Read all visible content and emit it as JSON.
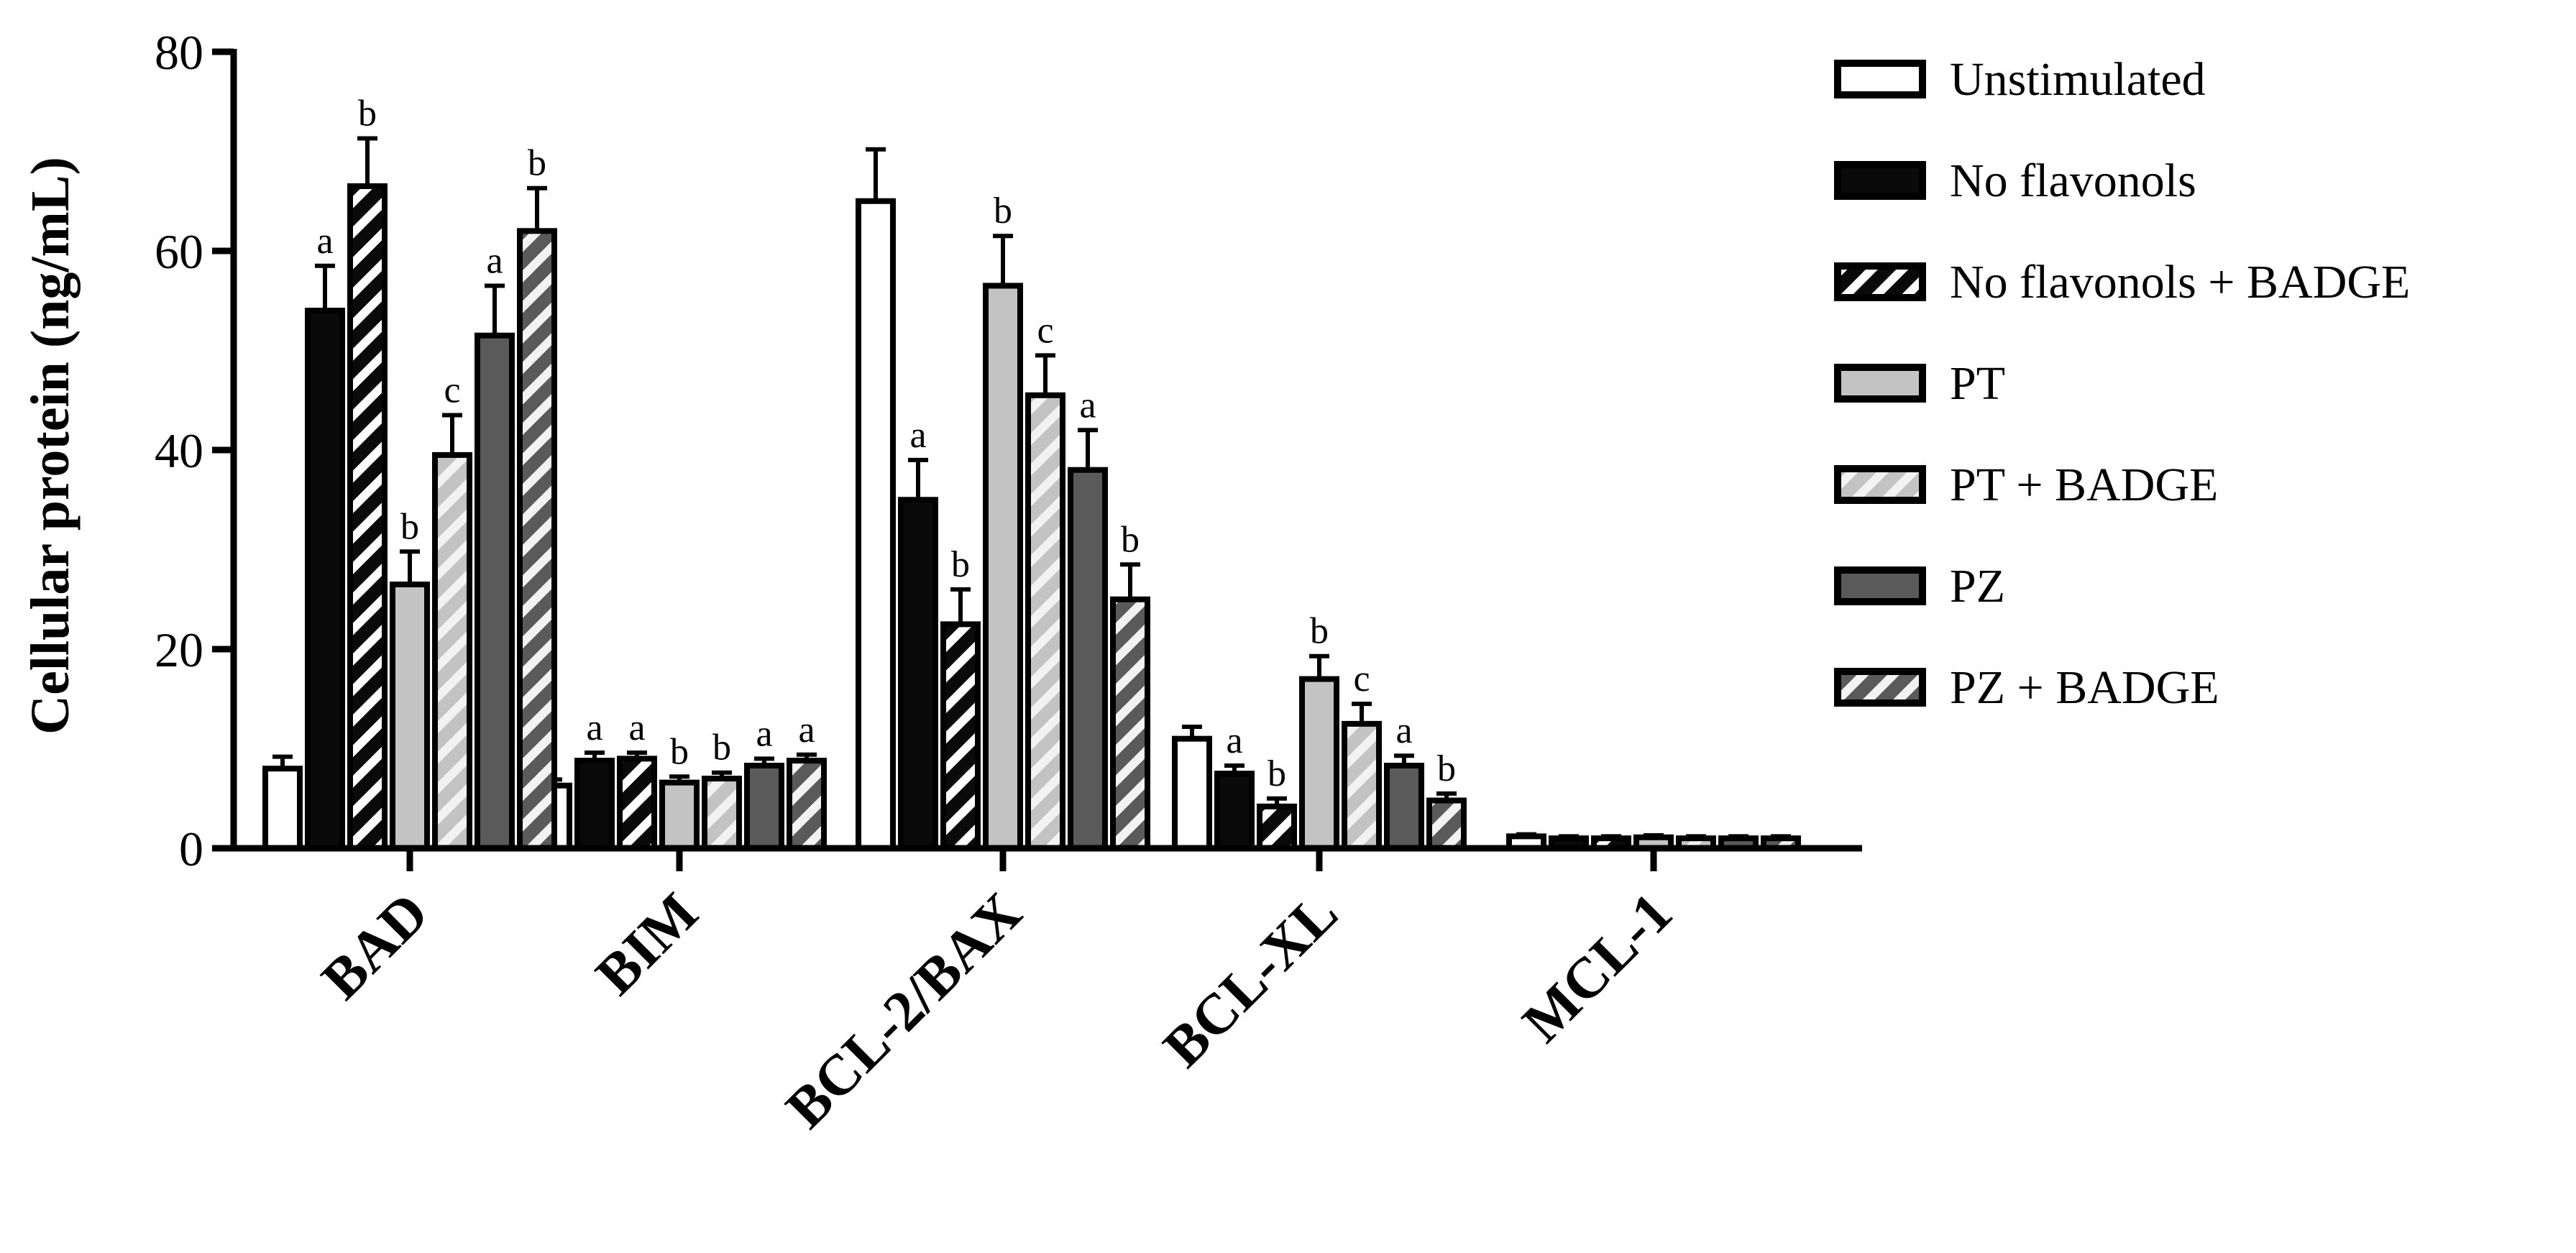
{
  "chart_data": {
    "type": "bar",
    "ylabel": "Cellular protein (ng/mL)",
    "xlabel": "",
    "ylim": [
      0,
      80
    ],
    "yticks": [
      0,
      20,
      40,
      60,
      80
    ],
    "grid": false,
    "legend_position": "right",
    "categories": [
      "BAD",
      "BIM",
      "BCL-2/BAX",
      "BCL-XL",
      "MCL-1"
    ],
    "series": [
      {
        "name": "Unstimulated",
        "fill": "white",
        "hatch": false,
        "values": [
          8,
          6.3,
          65,
          11,
          1.2
        ],
        "errors": [
          1.2,
          0.6,
          5.2,
          1.2,
          0.2
        ],
        "labels": [
          "",
          "",
          "",
          "",
          ""
        ]
      },
      {
        "name": "No flavonols",
        "fill": "black",
        "hatch": false,
        "values": [
          54,
          8.8,
          35,
          7.5,
          1.0
        ],
        "errors": [
          4.5,
          0.8,
          4.0,
          0.8,
          0.2
        ],
        "labels": [
          "a",
          "a",
          "a",
          "a",
          ""
        ]
      },
      {
        "name": "No flavonols + BADGE",
        "fill": "black",
        "hatch": true,
        "values": [
          66.5,
          9.0,
          22.5,
          4.2,
          1.0
        ],
        "errors": [
          4.8,
          0.6,
          3.5,
          0.8,
          0.2
        ],
        "labels": [
          "b",
          "a",
          "b",
          "b",
          ""
        ]
      },
      {
        "name": "PT",
        "fill": "lightgray",
        "hatch": false,
        "values": [
          26.5,
          6.6,
          56.5,
          17.0,
          1.1
        ],
        "errors": [
          3.3,
          0.6,
          5.0,
          2.3,
          0.2
        ],
        "labels": [
          "b",
          "b",
          "b",
          "b",
          ""
        ]
      },
      {
        "name": "PT + BADGE",
        "fill": "lightgray",
        "hatch": true,
        "values": [
          39.5,
          7.0,
          45.5,
          12.5,
          1.0
        ],
        "errors": [
          4.0,
          0.6,
          4.0,
          2.0,
          0.2
        ],
        "labels": [
          "c",
          "b",
          "c",
          "c",
          ""
        ]
      },
      {
        "name": "PZ",
        "fill": "darkgray",
        "hatch": false,
        "values": [
          51.5,
          8.3,
          38.0,
          8.3,
          1.0
        ],
        "errors": [
          5.0,
          0.7,
          4.0,
          1.0,
          0.2
        ],
        "labels": [
          "a",
          "a",
          "a",
          "a",
          ""
        ]
      },
      {
        "name": "PZ + BADGE",
        "fill": "darkgray",
        "hatch": true,
        "values": [
          62,
          8.8,
          25.0,
          4.8,
          1.0
        ],
        "errors": [
          4.3,
          0.6,
          3.5,
          0.7,
          0.2
        ],
        "labels": [
          "b",
          "a",
          "b",
          "b",
          ""
        ]
      }
    ]
  },
  "colors": {
    "white": "#ffffff",
    "black": "#0a0a0a",
    "lightgray": "#c3c3c3",
    "darkgray": "#5a5a5a",
    "stripe_on_black": "#ffffff",
    "stripe_on_gray": "#f2f2f2",
    "stroke": "#000000"
  }
}
